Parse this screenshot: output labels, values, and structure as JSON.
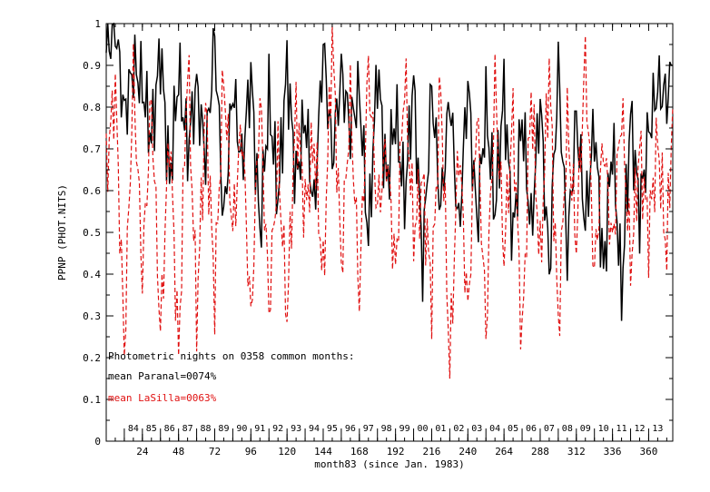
{
  "chart_data": {
    "type": "line",
    "title": "",
    "xlabel": "month83 (since Jan. 1983)",
    "ylabel": "PPNP (PHOT.NITS)",
    "xlim": [
      0,
      376
    ],
    "ylim": [
      0,
      1
    ],
    "grid": false,
    "x_ticks": [
      24,
      48,
      72,
      96,
      120,
      144,
      168,
      192,
      216,
      240,
      264,
      288,
      312,
      336,
      360
    ],
    "y_ticks": [
      "0",
      "0.1",
      "0.2",
      "0.3",
      "0.4",
      "0.5",
      "0.6",
      "0.7",
      "0.8",
      "0.9",
      "1"
    ],
    "y_tick_values": [
      0,
      0.1,
      0.2,
      0.3,
      0.4,
      0.5,
      0.6,
      0.7,
      0.8,
      0.9,
      1.0
    ],
    "year_labels": [
      "84",
      "85",
      "86",
      "87",
      "88",
      "89",
      "90",
      "91",
      "92",
      "93",
      "94",
      "95",
      "96",
      "97",
      "98",
      "99",
      "00",
      "01",
      "02",
      "03",
      "04",
      "05",
      "06",
      "07",
      "08",
      "09",
      "10",
      "11",
      "12",
      "13"
    ],
    "year_label_start_month": 12,
    "series_sample_step": 6,
    "annotations": [
      {
        "text": "Photometric nights on 0358 common months:",
        "color": "#000000"
      },
      {
        "text": "mean Paranal=0074%",
        "color": "#000000"
      },
      {
        "text": "mean LaSilla=0063%",
        "color": "#e01010"
      }
    ],
    "series": [
      {
        "name": "Paranal",
        "color": "#000000",
        "dash": "solid",
        "x": [
          0,
          6,
          12,
          18,
          24,
          30,
          36,
          42,
          48,
          54,
          60,
          66,
          72,
          78,
          84,
          90,
          96,
          102,
          108,
          114,
          120,
          126,
          132,
          138,
          144,
          150,
          156,
          162,
          168,
          174,
          180,
          186,
          192,
          198,
          204,
          210,
          216,
          222,
          228,
          234,
          240,
          246,
          252,
          258,
          264,
          270,
          276,
          282,
          288,
          294,
          300,
          306,
          312,
          318,
          324,
          330,
          336,
          342,
          348,
          354,
          360,
          366,
          372,
          376
        ],
        "y": [
          0.93,
          1.0,
          0.78,
          0.9,
          0.85,
          0.72,
          0.94,
          0.62,
          0.88,
          0.7,
          0.85,
          0.68,
          0.97,
          0.52,
          0.85,
          0.66,
          0.88,
          0.5,
          0.82,
          0.58,
          0.9,
          0.62,
          0.78,
          0.55,
          0.95,
          0.68,
          0.88,
          0.75,
          0.84,
          0.48,
          0.9,
          0.62,
          0.78,
          0.58,
          0.86,
          0.42,
          0.85,
          0.55,
          0.83,
          0.5,
          0.86,
          0.52,
          0.8,
          0.55,
          0.84,
          0.48,
          0.78,
          0.5,
          0.82,
          0.4,
          0.9,
          0.45,
          0.78,
          0.52,
          0.76,
          0.4,
          0.72,
          0.35,
          0.78,
          0.55,
          0.74,
          0.85,
          0.82,
          0.9
        ]
      },
      {
        "name": "LaSilla",
        "color": "#e01010",
        "dash": "dashed",
        "x": [
          0,
          6,
          12,
          18,
          24,
          30,
          36,
          42,
          48,
          54,
          60,
          66,
          72,
          78,
          84,
          90,
          96,
          102,
          108,
          114,
          120,
          126,
          132,
          138,
          144,
          150,
          156,
          162,
          168,
          174,
          180,
          186,
          192,
          198,
          204,
          210,
          216,
          222,
          228,
          234,
          240,
          246,
          252,
          258,
          264,
          270,
          276,
          282,
          288,
          294,
          300,
          306,
          312,
          318,
          324,
          330,
          336,
          342,
          348,
          354,
          360,
          366,
          372,
          376
        ],
        "y": [
          0.65,
          0.85,
          0.22,
          0.88,
          0.4,
          0.82,
          0.25,
          0.75,
          0.2,
          0.92,
          0.3,
          0.8,
          0.35,
          0.88,
          0.5,
          0.76,
          0.28,
          0.83,
          0.32,
          0.68,
          0.3,
          0.8,
          0.55,
          0.72,
          0.38,
          0.97,
          0.42,
          0.82,
          0.35,
          0.9,
          0.55,
          0.7,
          0.4,
          0.88,
          0.5,
          0.62,
          0.35,
          0.86,
          0.17,
          0.72,
          0.3,
          0.8,
          0.26,
          0.86,
          0.45,
          0.78,
          0.23,
          0.84,
          0.42,
          0.9,
          0.27,
          0.76,
          0.48,
          0.92,
          0.4,
          0.72,
          0.46,
          0.8,
          0.42,
          0.7,
          0.5,
          0.72,
          0.45,
          0.8
        ]
      }
    ]
  }
}
